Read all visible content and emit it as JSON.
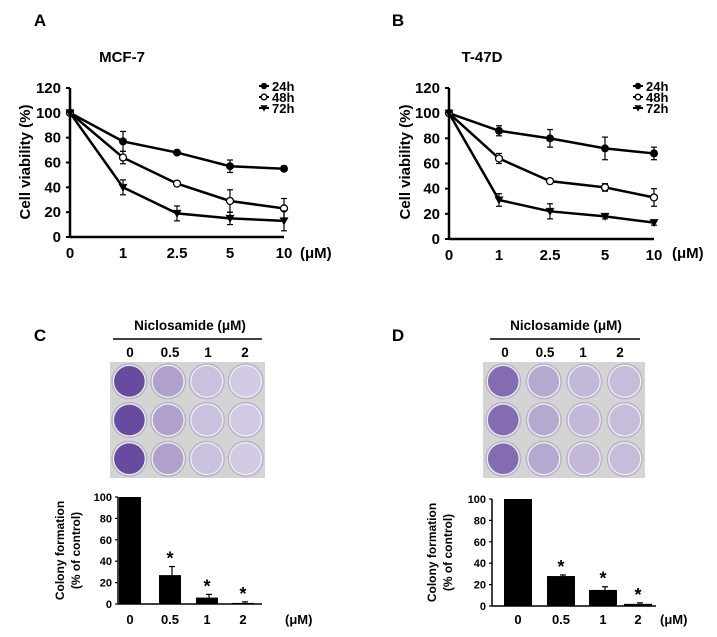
{
  "chart_data": [
    {
      "panel": "A",
      "type": "line",
      "title": "MCF-7",
      "xlabel": "",
      "x_unit": "(μM)",
      "ylabel": "Cell viability (%)",
      "categories": [
        "0",
        "1",
        "2.5",
        "5",
        "10"
      ],
      "ylim": [
        0,
        120
      ],
      "yticks": [
        "0",
        "20",
        "40",
        "60",
        "80",
        "100",
        "120"
      ],
      "legend_position": "top-right",
      "series": [
        {
          "name": "24h",
          "marker": "filled-circle",
          "values": [
            100,
            77,
            68,
            57,
            55
          ],
          "errors": [
            0,
            8,
            1,
            5,
            2
          ]
        },
        {
          "name": "48h",
          "marker": "open-circle",
          "values": [
            100,
            64,
            43,
            29,
            23
          ],
          "errors": [
            0,
            5,
            1,
            9,
            8
          ]
        },
        {
          "name": "72h",
          "marker": "filled-triangle-down",
          "values": [
            100,
            40,
            19,
            15,
            13
          ],
          "errors": [
            0,
            6,
            6,
            5,
            8
          ]
        }
      ]
    },
    {
      "panel": "B",
      "type": "line",
      "title": "T-47D",
      "xlabel": "",
      "x_unit": "(μM)",
      "ylabel": "Cell viability (%)",
      "categories": [
        "0",
        "1",
        "2.5",
        "5",
        "10"
      ],
      "ylim": [
        0,
        120
      ],
      "yticks": [
        "0",
        "20",
        "40",
        "60",
        "80",
        "100",
        "120"
      ],
      "legend_position": "top-right",
      "series": [
        {
          "name": "24h",
          "marker": "filled-circle",
          "values": [
            100,
            86,
            80,
            72,
            68
          ],
          "errors": [
            0,
            4,
            7,
            9,
            5
          ]
        },
        {
          "name": "48h",
          "marker": "open-circle",
          "values": [
            100,
            64,
            46,
            41,
            33
          ],
          "errors": [
            0,
            4,
            2,
            3,
            7
          ]
        },
        {
          "name": "72h",
          "marker": "filled-triangle-down",
          "values": [
            100,
            31,
            22,
            18,
            13
          ],
          "errors": [
            0,
            5,
            6,
            2,
            2
          ]
        }
      ]
    },
    {
      "panel": "C",
      "type": "bar",
      "plate_title": "Niclosamide (μM)",
      "categories": [
        "0",
        "0.5",
        "1",
        "2"
      ],
      "x_unit": "(μM)",
      "ylabel_line1": "Colony formation",
      "ylabel_line2": "(% of control)",
      "ylim": [
        0,
        100
      ],
      "yticks": [
        "0",
        "20",
        "40",
        "60",
        "80",
        "100"
      ],
      "values": [
        100,
        27,
        6,
        1
      ],
      "errors": [
        0,
        8,
        3,
        1
      ],
      "significance": [
        "",
        "*",
        "*",
        "*"
      ],
      "plate_stain": [
        1.0,
        0.35,
        0.12,
        0.05
      ]
    },
    {
      "panel": "D",
      "type": "bar",
      "plate_title": "Niclosamide (μM)",
      "categories": [
        "0",
        "0.5",
        "1",
        "2"
      ],
      "x_unit": "(μM)",
      "ylabel_line1": "Colony formation",
      "ylabel_line2": "(% of control)",
      "ylim": [
        0,
        100
      ],
      "yticks": [
        "0",
        "20",
        "40",
        "60",
        "80",
        "100"
      ],
      "values": [
        100,
        28,
        15,
        2
      ],
      "errors": [
        0,
        1,
        3,
        1
      ],
      "significance": [
        "",
        "*",
        "*",
        "*"
      ],
      "plate_stain": [
        0.75,
        0.3,
        0.18,
        0.15
      ]
    }
  ],
  "colors": {
    "ink": "#000000",
    "stain": "#4a2a8c",
    "plate": "#d9d9d9",
    "well": "#eeeaf4"
  }
}
